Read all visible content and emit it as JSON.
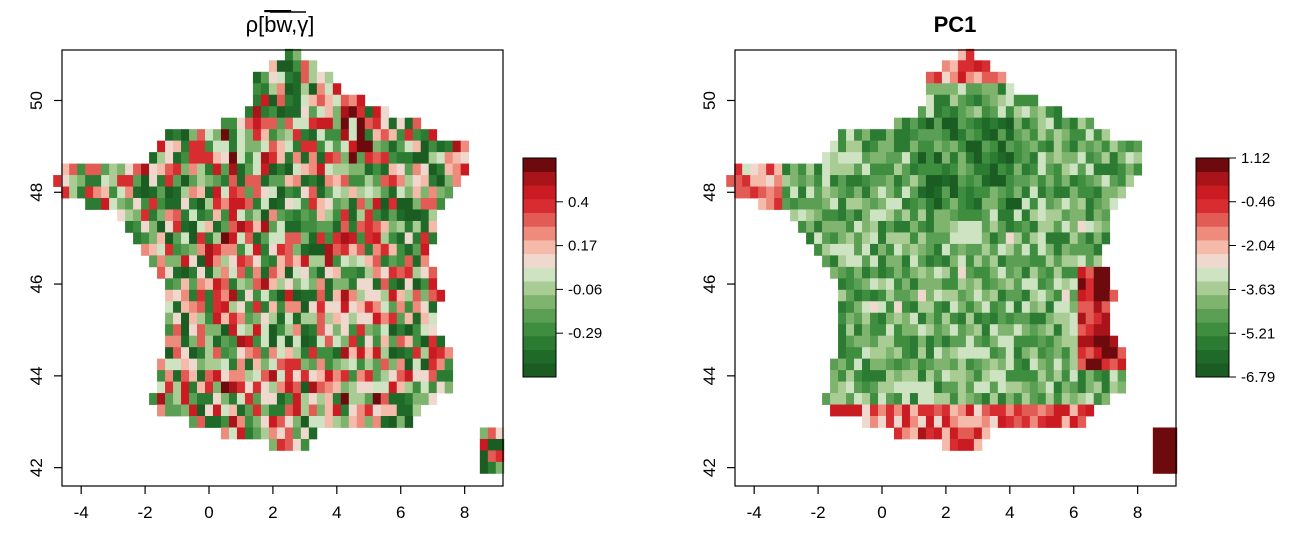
{
  "chart_data": [
    {
      "type": "heatmap",
      "title": "ρ[bw,γ]",
      "title_main": "ρ[",
      "title_overline": "bw",
      "title_tail": ",γ]",
      "xlim": [
        -4.6,
        9.2
      ],
      "ylim": [
        41.6,
        51.1
      ],
      "x_ticks": [
        -4,
        -2,
        0,
        2,
        4,
        6,
        8
      ],
      "y_ticks": [
        42,
        44,
        46,
        48,
        50
      ],
      "grid": false,
      "legend": "right",
      "colorbar": {
        "range": [
          -0.52,
          0.63
        ],
        "ticks": [
          0.4,
          0.17,
          -0.06,
          -0.29
        ],
        "tick_labels": [
          "0.4",
          "0.17",
          "-0.06",
          "-0.29"
        ],
        "colors": [
          "#1a5c22",
          "#1f6a28",
          "#2c7b33",
          "#3f8e40",
          "#5b9f55",
          "#7fb46f",
          "#a8cc93",
          "#cde3c2",
          "#efd9cf",
          "#f6baaa",
          "#ee8b7c",
          "#e25c55",
          "#d72c30",
          "#cb1b22",
          "#a81419",
          "#6d0a0d"
        ]
      },
      "seed": 13
    },
    {
      "type": "heatmap",
      "title": "PC1",
      "xlim": [
        -4.6,
        9.2
      ],
      "ylim": [
        41.6,
        51.1
      ],
      "x_ticks": [
        -4,
        -2,
        0,
        2,
        4,
        6,
        8
      ],
      "y_ticks": [
        42,
        44,
        46,
        48,
        50
      ],
      "grid": false,
      "legend": "right",
      "colorbar": {
        "range": [
          -6.79,
          1.12
        ],
        "ticks": [
          1.12,
          -0.46,
          -2.04,
          -3.63,
          -5.21,
          -6.79
        ],
        "tick_labels": [
          "1.12",
          "-0.46",
          "-2.04",
          "-3.63",
          "-5.21",
          "-6.79"
        ],
        "colors": [
          "#1a5c22",
          "#1f6a28",
          "#2c7b33",
          "#3f8e40",
          "#5b9f55",
          "#7fb46f",
          "#a8cc93",
          "#cde3c2",
          "#efd9cf",
          "#f6baaa",
          "#ee8b7c",
          "#e25c55",
          "#d72c30",
          "#cb1b22",
          "#a81419",
          "#6d0a0d"
        ]
      },
      "seed": 71
    }
  ]
}
